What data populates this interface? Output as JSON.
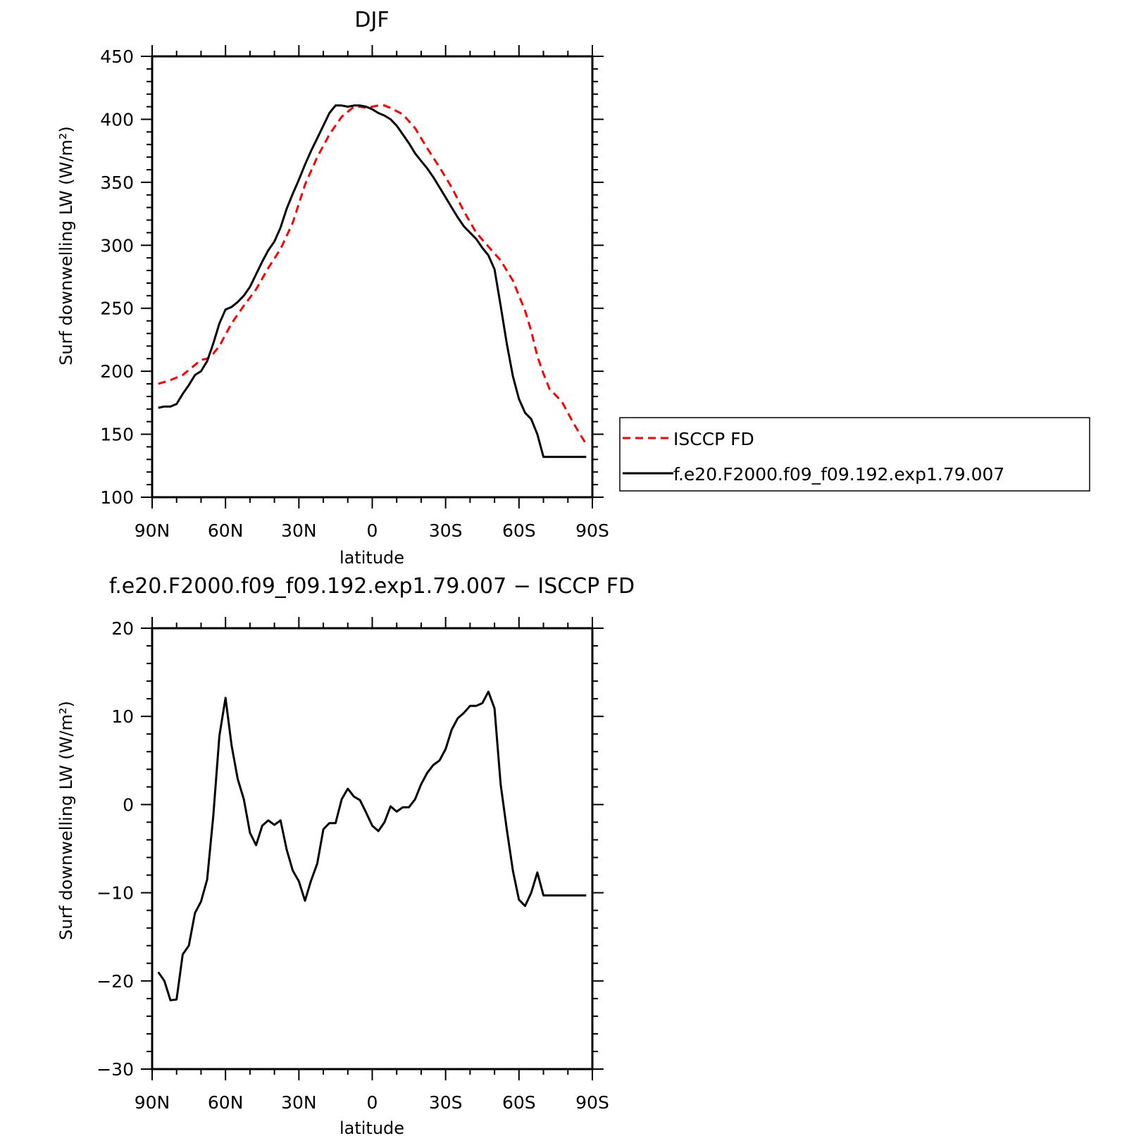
{
  "chart_data": [
    {
      "type": "line",
      "title": "DJF",
      "xlabel": "latitude",
      "ylabel": "Surf downwelling LW (W/m²)",
      "xlim": [
        90,
        -90
      ],
      "ylim": [
        100,
        450
      ],
      "xticks": [
        {
          "value": 90,
          "label": "90N"
        },
        {
          "value": 60,
          "label": "60N"
        },
        {
          "value": 30,
          "label": "30N"
        },
        {
          "value": 0,
          "label": "0"
        },
        {
          "value": -30,
          "label": "30S"
        },
        {
          "value": -60,
          "label": "60S"
        },
        {
          "value": -90,
          "label": "90S"
        }
      ],
      "yticks": [
        {
          "value": 450,
          "label": "450"
        },
        {
          "value": 400,
          "label": "400"
        },
        {
          "value": 350,
          "label": "350"
        },
        {
          "value": 300,
          "label": "300"
        },
        {
          "value": 250,
          "label": "250"
        },
        {
          "value": 200,
          "label": "200"
        },
        {
          "value": 150,
          "label": "150"
        },
        {
          "value": 100,
          "label": "100"
        }
      ],
      "legend": "right",
      "series": [
        {
          "name": "ISCCP FD",
          "color": "#ff0000",
          "dash": "dashed",
          "x": [
            87.5,
            82.5,
            77.5,
            72.5,
            70,
            67.5,
            65,
            62.5,
            57.5,
            52.5,
            47.5,
            42.5,
            37.5,
            32.5,
            27.5,
            22.5,
            17.5,
            12.5,
            7.5,
            5,
            2.5,
            0,
            -2.5,
            -5,
            -7.5,
            -12.5,
            -17.5,
            -22.5,
            -27.5,
            -32.5,
            -37.5,
            -42.5,
            -47.5,
            -52.5,
            -57.5,
            -62.5,
            -65,
            -67.5,
            -70,
            -72.5,
            -77.5,
            -82.5,
            -87.5
          ],
          "y": [
            190,
            193,
            197,
            205,
            209,
            210,
            214,
            220,
            238,
            252,
            265,
            282,
            297,
            318,
            348,
            370,
            388,
            402,
            410,
            410,
            409,
            410,
            411,
            411,
            409,
            404,
            393,
            377,
            362,
            346,
            327,
            310,
            299,
            288,
            272,
            248,
            232,
            212,
            198,
            186,
            176,
            158,
            142
          ]
        },
        {
          "name": "f.e20.F2000.f09_f09.192.exp1.79.007",
          "color": "#000000",
          "dash": "solid",
          "x": [
            87.5,
            85,
            82.5,
            80,
            77.5,
            75,
            72.5,
            70,
            67.5,
            65,
            62.5,
            60,
            57.5,
            55,
            52.5,
            50,
            47.5,
            45,
            42.5,
            40,
            37.5,
            35,
            32.5,
            30,
            27.5,
            25,
            22.5,
            20,
            17.5,
            15,
            12.5,
            10,
            7.5,
            5,
            2.5,
            0,
            -2.5,
            -5,
            -7.5,
            -10,
            -12.5,
            -15,
            -17.5,
            -20,
            -22.5,
            -25,
            -27.5,
            -30,
            -32.5,
            -35,
            -37.5,
            -40,
            -42.5,
            -45,
            -47.5,
            -50,
            -52.5,
            -55,
            -57.5,
            -60,
            -62.5,
            -65,
            -67.5,
            -70,
            -72.5,
            -75,
            -77.5,
            -80,
            -82.5,
            -85,
            -87.5
          ],
          "y": [
            171,
            172,
            172,
            174,
            182,
            189,
            197,
            200,
            208,
            222,
            238,
            249,
            251,
            255,
            260,
            267,
            277,
            287,
            296,
            303,
            314,
            329,
            341,
            352,
            364,
            375,
            385,
            395,
            405,
            411,
            411,
            410,
            411,
            411,
            410,
            408,
            405,
            403,
            400,
            395,
            388,
            381,
            373,
            367,
            361,
            354,
            346,
            338,
            330,
            322,
            315,
            310,
            305,
            298,
            292,
            281,
            252,
            222,
            196,
            178,
            167,
            162,
            150,
            132,
            132,
            132,
            132,
            132,
            132,
            132,
            132
          ],
          "y_note": ""
        }
      ]
    },
    {
      "type": "line",
      "title": "f.e20.F2000.f09_f09.192.exp1.79.007 − ISCCP FD",
      "xlabel": "latitude",
      "ylabel": "Surf downwelling LW (W/m²)",
      "xlim": [
        90,
        -90
      ],
      "ylim": [
        -30,
        20
      ],
      "xticks": [
        {
          "value": 90,
          "label": "90N"
        },
        {
          "value": 60,
          "label": "60N"
        },
        {
          "value": 30,
          "label": "30N"
        },
        {
          "value": 0,
          "label": "0"
        },
        {
          "value": -30,
          "label": "30S"
        },
        {
          "value": -60,
          "label": "60S"
        },
        {
          "value": -90,
          "label": "90S"
        }
      ],
      "yticks": [
        {
          "value": 20,
          "label": "20"
        },
        {
          "value": 10,
          "label": "10"
        },
        {
          "value": 0,
          "label": "0"
        },
        {
          "value": -10,
          "label": "−10"
        },
        {
          "value": -20,
          "label": "−20"
        },
        {
          "value": -30,
          "label": "−30"
        }
      ],
      "series": [
        {
          "color": "#000000",
          "dash": "solid",
          "x": [
            87.5,
            85,
            82.5,
            80,
            77.5,
            75,
            72.5,
            70,
            67.5,
            65,
            62.5,
            60,
            57.5,
            55,
            52.5,
            50,
            47.5,
            45,
            42.5,
            40,
            37.5,
            35,
            32.5,
            30,
            27.5,
            25,
            22.5,
            20,
            17.5,
            15,
            12.5,
            10,
            7.5,
            5,
            2.5,
            0,
            -2.5,
            -5,
            -7.5,
            -10,
            -12.5,
            -15,
            -17.5,
            -20,
            -22.5,
            -25,
            -27.5,
            -30,
            -32.5,
            -35,
            -37.5,
            -40,
            -42.5,
            -45,
            -47.5,
            -50,
            -52.5,
            -55,
            -57.5,
            -60,
            -62.5,
            -65,
            -67.5,
            -70,
            -72.5,
            -75,
            -77.5,
            -80,
            -82.5,
            -85,
            -87.5
          ],
          "y": [
            -19,
            -20,
            -22.2,
            -22.1,
            -17,
            -16,
            -12.3,
            -11,
            -8.5,
            -1.3,
            7.8,
            12.1,
            6.7,
            2.9,
            0.6,
            -3.2,
            -4.6,
            -2.4,
            -1.8,
            -2.3,
            -1.8,
            -5.1,
            -7.5,
            -8.7,
            -10.9,
            -8.6,
            -6.7,
            -2.8,
            -2.1,
            -2.1,
            0.6,
            1.8,
            0.9,
            0.5,
            -0.9,
            -2.4,
            -3.0,
            -2.0,
            -0.2,
            -0.8,
            -0.3,
            -0.3,
            0.6,
            2.3,
            3.6,
            4.5,
            5.0,
            6.3,
            8.5,
            9.8,
            10.4,
            11.2,
            11.2,
            11.5,
            12.8,
            10.9,
            2.3,
            -2.8,
            -7.5,
            -10.8,
            -11.5,
            -10.0,
            -7.7,
            -10.3,
            -10.3,
            -10.3,
            -10.3,
            -10.3,
            -10.3,
            -10.3,
            -10.3
          ]
        }
      ]
    }
  ]
}
